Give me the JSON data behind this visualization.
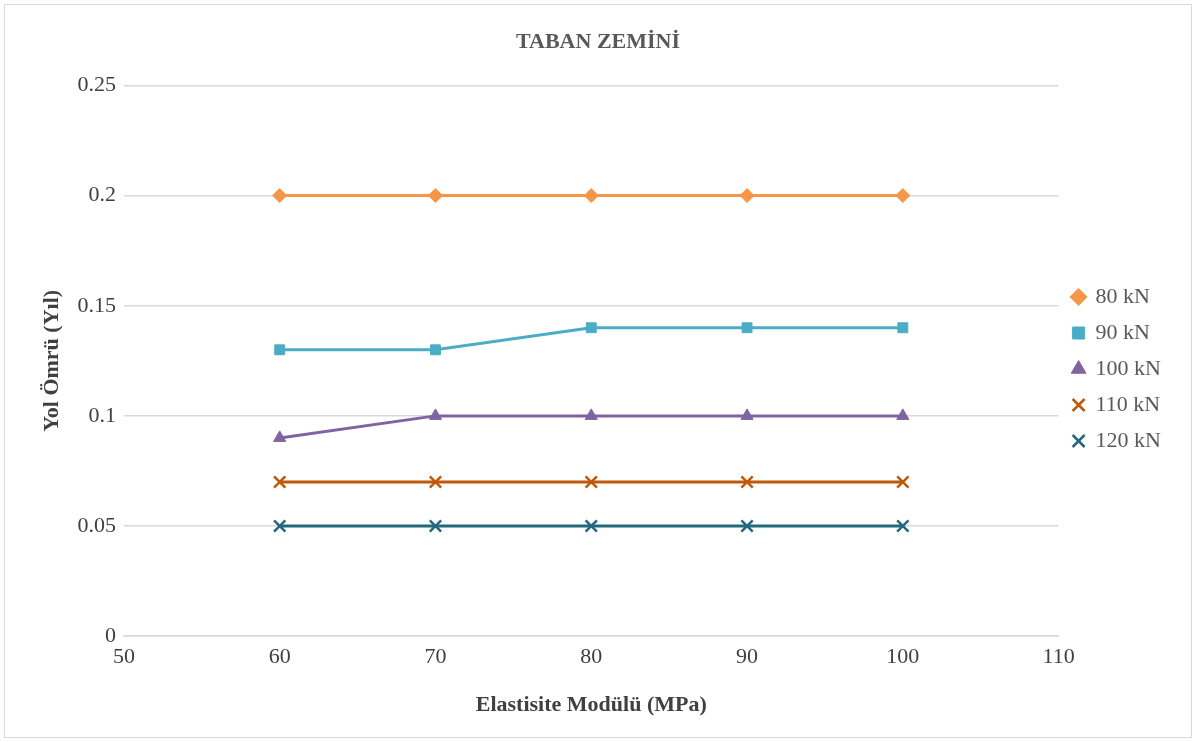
{
  "chart_data": {
    "type": "line",
    "title": "TABAN ZEMİNİ",
    "xlabel": "Elastisite Modülü (MPa)",
    "ylabel": "Yol Ömrü (Yıl)",
    "x": [
      60,
      70,
      80,
      90,
      100
    ],
    "series": [
      {
        "name": "80 kN",
        "color": "#f79646",
        "marker": "diamond",
        "values": [
          0.2,
          0.2,
          0.2,
          0.2,
          0.2
        ]
      },
      {
        "name": "90 kN",
        "color": "#4bacc6",
        "marker": "square",
        "values": [
          0.13,
          0.13,
          0.14,
          0.14,
          0.14
        ]
      },
      {
        "name": "100 kN",
        "color": "#8064a2",
        "marker": "triangle",
        "values": [
          0.09,
          0.1,
          0.1,
          0.1,
          0.1
        ]
      },
      {
        "name": "110 kN",
        "color": "#c0580a",
        "marker": "cross",
        "values": [
          0.07,
          0.07,
          0.07,
          0.07,
          0.07
        ]
      },
      {
        "name": "120 kN",
        "color": "#23697e",
        "marker": "cross",
        "values": [
          0.05,
          0.05,
          0.05,
          0.05,
          0.05
        ]
      }
    ],
    "xlim": [
      50,
      110
    ],
    "xticks": [
      50,
      60,
      70,
      80,
      90,
      100,
      110
    ],
    "ylim": [
      0,
      0.25
    ],
    "yticks": [
      0,
      0.05,
      0.1,
      0.15,
      0.2,
      0.25
    ],
    "grid": "y",
    "legend": "right",
    "line_style": "solid"
  }
}
